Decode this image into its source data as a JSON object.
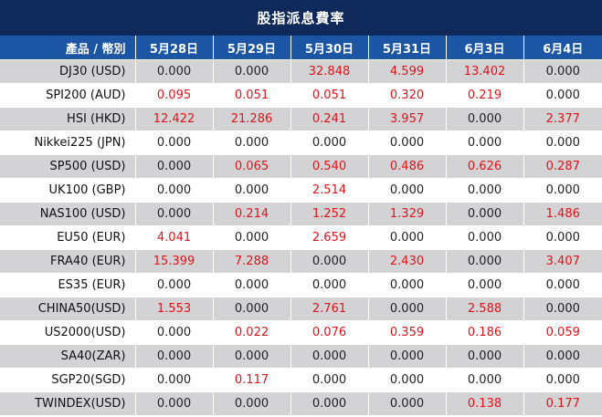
{
  "title": "股指派息費率",
  "header": {
    "product_label": "產品 / 幣別",
    "dates": [
      "5月28日",
      "5月29日",
      "5月30日",
      "5月31日",
      "6月3日",
      "6月4日"
    ]
  },
  "colors": {
    "header_bg": "#1b55a3",
    "title_bg": "#0f2a5a",
    "row_shade": "#d3d3d5",
    "positive_value": "#e0141c"
  },
  "rows": [
    {
      "product": "DJ30 (USD)",
      "values": [
        "0.000",
        "0.000",
        "32.848",
        "4.599",
        "13.402",
        "0.000"
      ]
    },
    {
      "product": "SPI200 (AUD)",
      "values": [
        "0.095",
        "0.051",
        "0.051",
        "0.320",
        "0.219",
        "0.000"
      ]
    },
    {
      "product": "HSI (HKD)",
      "values": [
        "12.422",
        "21.286",
        "0.241",
        "3.957",
        "0.000",
        "2.377"
      ]
    },
    {
      "product": "Nikkei225 (JPN)",
      "values": [
        "0.000",
        "0.000",
        "0.000",
        "0.000",
        "0.000",
        "0.000"
      ]
    },
    {
      "product": "SP500 (USD)",
      "values": [
        "0.000",
        "0.065",
        "0.540",
        "0.486",
        "0.626",
        "0.287"
      ]
    },
    {
      "product": "UK100 (GBP)",
      "values": [
        "0.000",
        "0.000",
        "2.514",
        "0.000",
        "0.000",
        "0.000"
      ]
    },
    {
      "product": "NAS100 (USD)",
      "values": [
        "0.000",
        "0.214",
        "1.252",
        "1.329",
        "0.000",
        "1.486"
      ]
    },
    {
      "product": "EU50 (EUR)",
      "values": [
        "4.041",
        "0.000",
        "2.659",
        "0.000",
        "0.000",
        "0.000"
      ]
    },
    {
      "product": "FRA40 (EUR)",
      "values": [
        "15.399",
        "7.288",
        "0.000",
        "2.430",
        "0.000",
        "3.407"
      ]
    },
    {
      "product": "ES35 (EUR)",
      "values": [
        "0.000",
        "0.000",
        "0.000",
        "0.000",
        "0.000",
        "0.000"
      ]
    },
    {
      "product": "CHINA50(USD)",
      "values": [
        "1.553",
        "0.000",
        "2.761",
        "0.000",
        "2.588",
        "0.000"
      ]
    },
    {
      "product": "US2000(USD)",
      "values": [
        "0.000",
        "0.022",
        "0.076",
        "0.359",
        "0.186",
        "0.059"
      ]
    },
    {
      "product": "SA40(ZAR)",
      "values": [
        "0.000",
        "0.000",
        "0.000",
        "0.000",
        "0.000",
        "0.000"
      ]
    },
    {
      "product": "SGP20(SGD)",
      "values": [
        "0.000",
        "0.117",
        "0.000",
        "0.000",
        "0.000",
        "0.000"
      ]
    },
    {
      "product": "TWINDEX(USD)",
      "values": [
        "0.000",
        "0.000",
        "0.000",
        "0.000",
        "0.138",
        "0.177"
      ]
    }
  ]
}
